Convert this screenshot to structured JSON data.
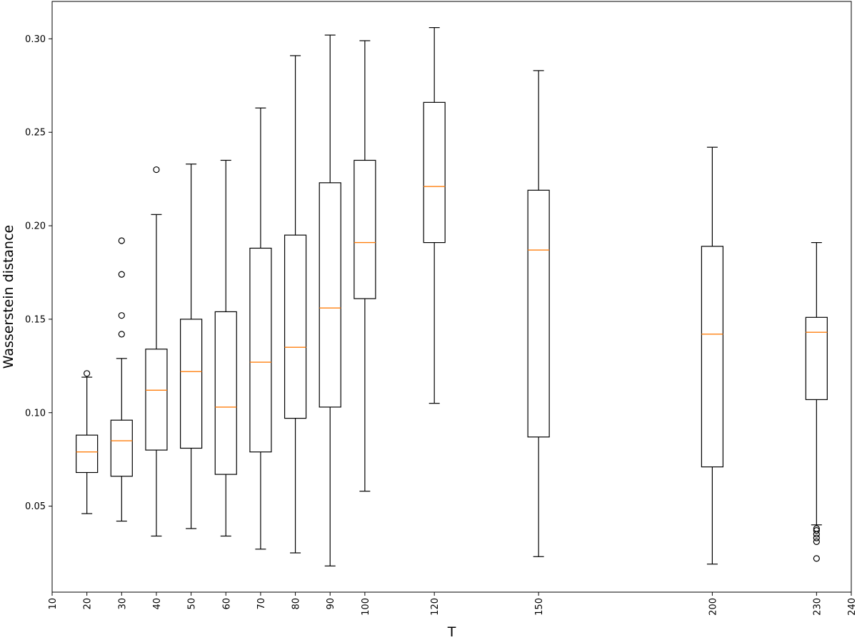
{
  "chart_data": {
    "type": "boxplot",
    "xlabel": "T",
    "ylabel": "Wasserstein distance",
    "xlim": [
      10,
      240
    ],
    "ylim": [
      0.004,
      0.32
    ],
    "x_ticks": [
      10,
      20,
      30,
      40,
      50,
      60,
      70,
      80,
      90,
      100,
      120,
      150,
      200,
      230,
      240
    ],
    "y_ticks": [
      0.05,
      0.1,
      0.15,
      0.2,
      0.25,
      0.3
    ],
    "y_tick_labels": [
      "0.05",
      "0.10",
      "0.15",
      "0.20",
      "0.25",
      "0.30"
    ],
    "box_color": "#000000",
    "median_color": "#ff7f0e",
    "boxes": [
      {
        "x": 20,
        "whisker_low": 0.046,
        "q1": 0.068,
        "median": 0.079,
        "q3": 0.088,
        "whisker_high": 0.119,
        "outliers": [
          0.121
        ]
      },
      {
        "x": 30,
        "whisker_low": 0.042,
        "q1": 0.066,
        "median": 0.085,
        "q3": 0.096,
        "whisker_high": 0.129,
        "outliers": [
          0.142,
          0.152,
          0.174,
          0.192
        ]
      },
      {
        "x": 40,
        "whisker_low": 0.034,
        "q1": 0.08,
        "median": 0.112,
        "q3": 0.134,
        "whisker_high": 0.206,
        "outliers": [
          0.23
        ]
      },
      {
        "x": 50,
        "whisker_low": 0.038,
        "q1": 0.081,
        "median": 0.122,
        "q3": 0.15,
        "whisker_high": 0.233,
        "outliers": []
      },
      {
        "x": 60,
        "whisker_low": 0.034,
        "q1": 0.067,
        "median": 0.103,
        "q3": 0.154,
        "whisker_high": 0.235,
        "outliers": []
      },
      {
        "x": 70,
        "whisker_low": 0.027,
        "q1": 0.079,
        "median": 0.127,
        "q3": 0.188,
        "whisker_high": 0.263,
        "outliers": []
      },
      {
        "x": 80,
        "whisker_low": 0.025,
        "q1": 0.097,
        "median": 0.135,
        "q3": 0.195,
        "whisker_high": 0.291,
        "outliers": []
      },
      {
        "x": 90,
        "whisker_low": 0.018,
        "q1": 0.103,
        "median": 0.156,
        "q3": 0.223,
        "whisker_high": 0.302,
        "outliers": []
      },
      {
        "x": 100,
        "whisker_low": 0.058,
        "q1": 0.161,
        "median": 0.191,
        "q3": 0.235,
        "whisker_high": 0.299,
        "outliers": []
      },
      {
        "x": 120,
        "whisker_low": 0.105,
        "q1": 0.191,
        "median": 0.221,
        "q3": 0.266,
        "whisker_high": 0.306,
        "outliers": []
      },
      {
        "x": 150,
        "whisker_low": 0.023,
        "q1": 0.087,
        "median": 0.187,
        "q3": 0.219,
        "whisker_high": 0.283,
        "outliers": []
      },
      {
        "x": 200,
        "whisker_low": 0.019,
        "q1": 0.071,
        "median": 0.142,
        "q3": 0.189,
        "whisker_high": 0.242,
        "outliers": []
      },
      {
        "x": 230,
        "whisker_low": 0.04,
        "q1": 0.107,
        "median": 0.143,
        "q3": 0.151,
        "whisker_high": 0.191,
        "outliers": [
          0.022,
          0.031,
          0.033,
          0.035,
          0.037,
          0.038
        ]
      }
    ]
  }
}
